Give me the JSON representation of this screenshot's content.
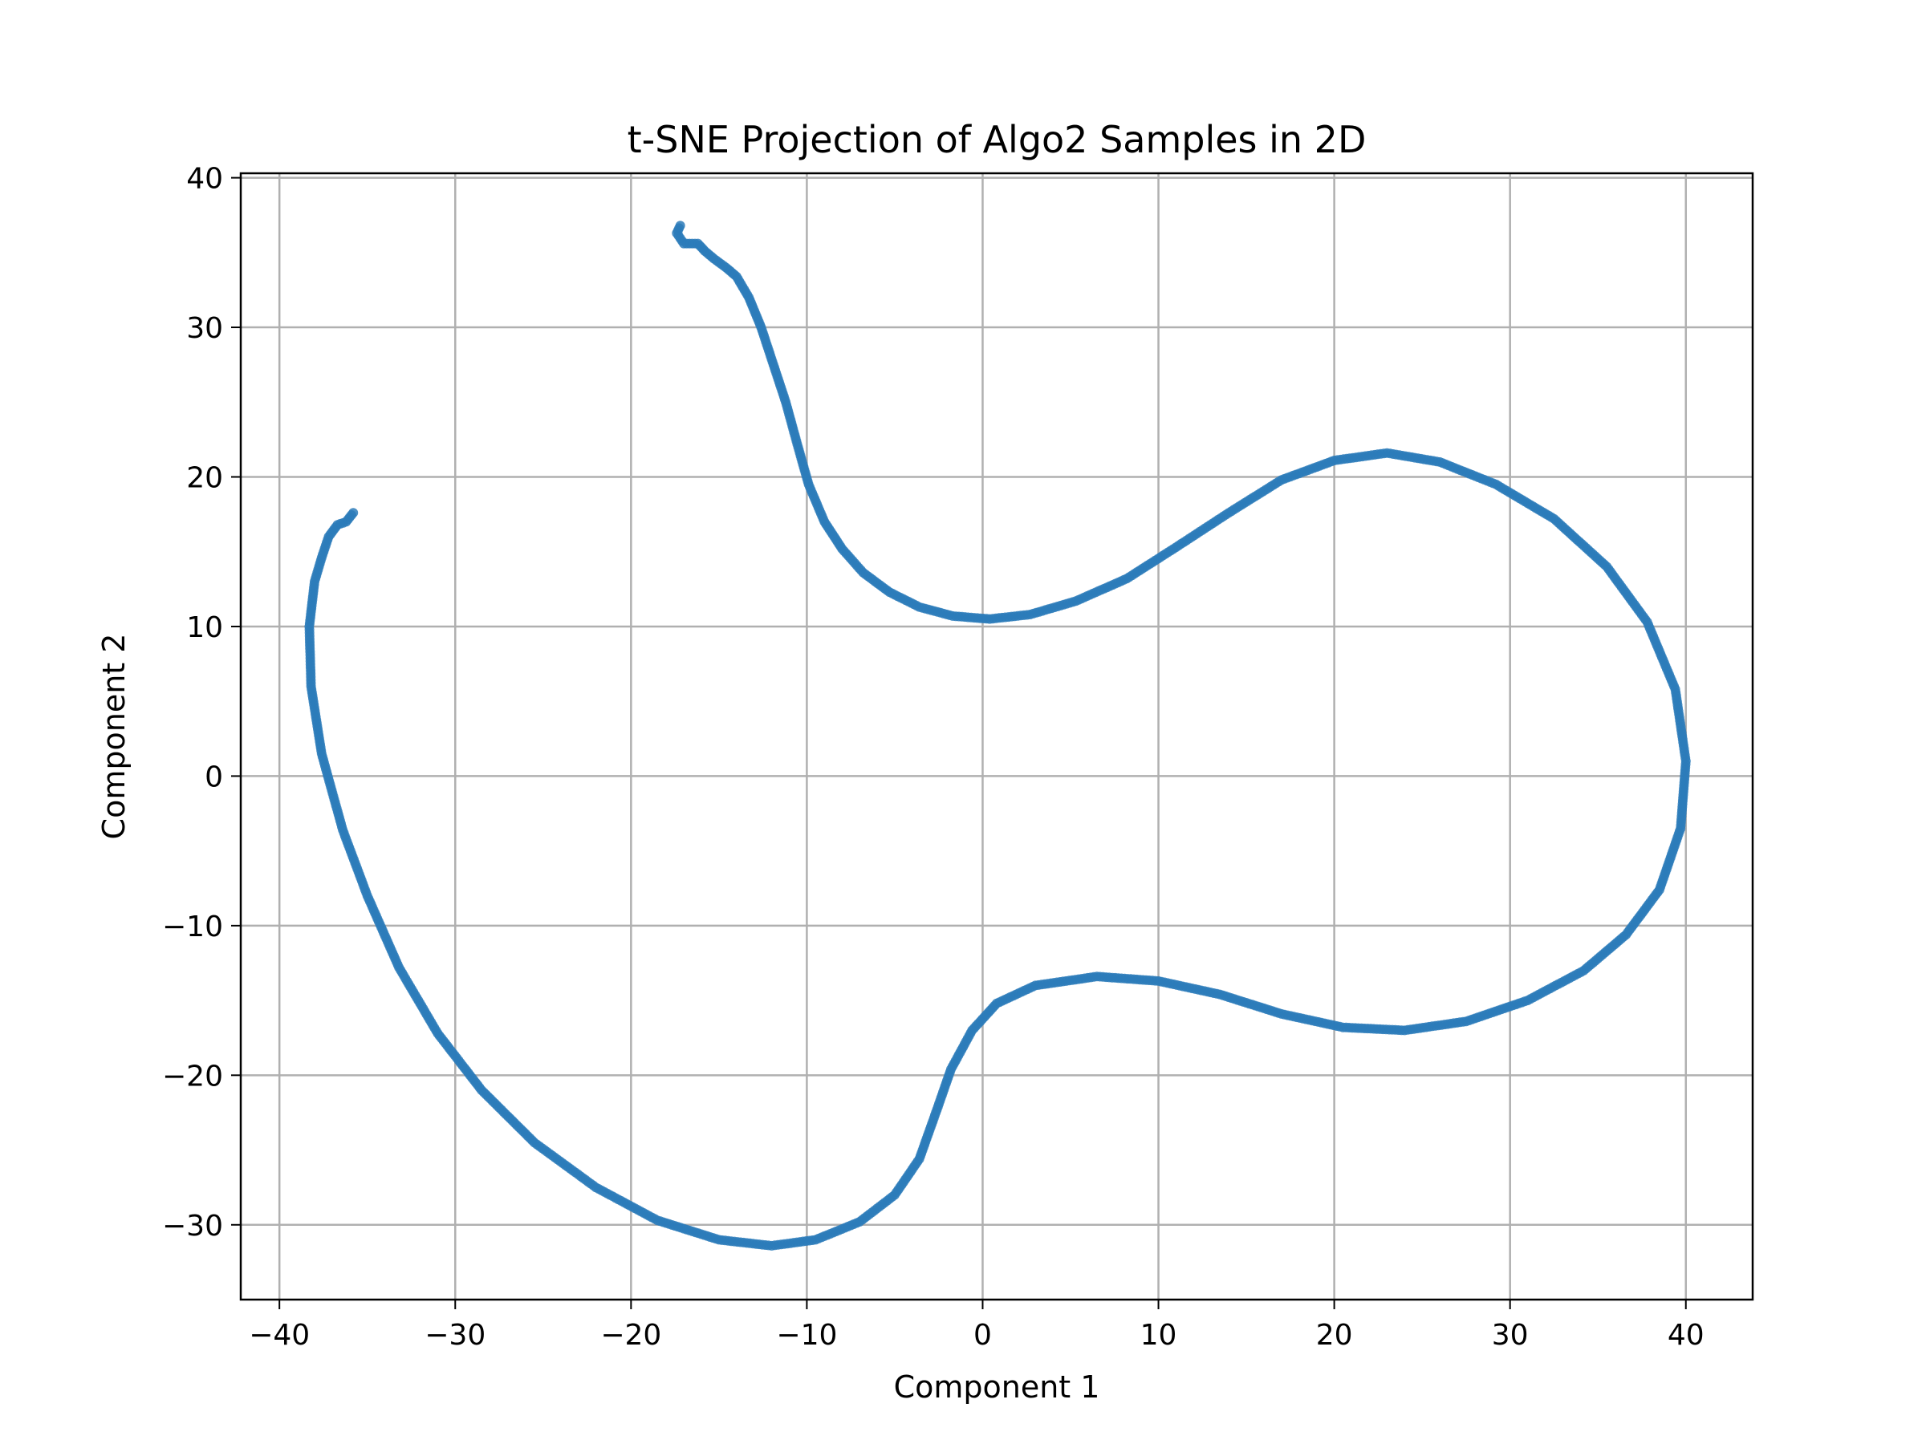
{
  "chart_data": {
    "type": "scatter",
    "title": "t-SNE Projection of Algo2 Samples in 2D",
    "xlabel": "Component 1",
    "ylabel": "Component 2",
    "xlim": [
      -42.2,
      43.8
    ],
    "ylim": [
      -35,
      40.3
    ],
    "xticks": [
      -40,
      -30,
      -20,
      -10,
      0,
      10,
      20,
      30,
      40
    ],
    "yticks": [
      -30,
      -20,
      -10,
      0,
      10,
      20,
      30,
      40
    ],
    "grid": true,
    "color": "#2b7bba",
    "series": [
      {
        "points": [
          [
            -17.2,
            36.8
          ],
          [
            -17.4,
            36.3
          ],
          [
            -17.0,
            35.6
          ],
          [
            -16.2,
            35.6
          ],
          [
            -15.8,
            35.1
          ],
          [
            -15.3,
            34.6
          ],
          [
            -14.6,
            34.0
          ],
          [
            -14.0,
            33.4
          ],
          [
            -13.3,
            32.0
          ],
          [
            -12.6,
            30.0
          ],
          [
            -11.9,
            27.5
          ],
          [
            -11.2,
            25.0
          ],
          [
            -10.5,
            22.0
          ],
          [
            -9.9,
            19.5
          ],
          [
            -9.0,
            17.0
          ],
          [
            -8.0,
            15.2
          ],
          [
            -6.8,
            13.6
          ],
          [
            -5.3,
            12.3
          ],
          [
            -3.6,
            11.3
          ],
          [
            -1.7,
            10.7
          ],
          [
            0.4,
            10.5
          ],
          [
            2.7,
            10.8
          ],
          [
            5.3,
            11.7
          ],
          [
            8.2,
            13.2
          ],
          [
            11.0,
            15.3
          ],
          [
            14.0,
            17.6
          ],
          [
            17.0,
            19.8
          ],
          [
            20.0,
            21.1
          ],
          [
            23.0,
            21.6
          ],
          [
            26.0,
            21.0
          ],
          [
            29.2,
            19.5
          ],
          [
            32.5,
            17.2
          ],
          [
            35.5,
            14.0
          ],
          [
            37.8,
            10.3
          ],
          [
            39.4,
            5.8
          ],
          [
            40.0,
            1.0
          ],
          [
            39.7,
            -3.5
          ],
          [
            38.5,
            -7.6
          ],
          [
            36.6,
            -10.6
          ],
          [
            34.2,
            -13.0
          ],
          [
            31.0,
            -15.0
          ],
          [
            27.5,
            -16.4
          ],
          [
            24.0,
            -17.0
          ],
          [
            20.5,
            -16.8
          ],
          [
            17.0,
            -15.9
          ],
          [
            13.5,
            -14.6
          ],
          [
            10.0,
            -13.7
          ],
          [
            6.5,
            -13.4
          ],
          [
            3.0,
            -14.0
          ],
          [
            0.8,
            -15.2
          ],
          [
            -0.6,
            -17.0
          ],
          [
            -1.8,
            -19.6
          ],
          [
            -2.6,
            -22.3
          ],
          [
            -3.6,
            -25.6
          ],
          [
            -5.0,
            -28.0
          ],
          [
            -7.0,
            -29.8
          ],
          [
            -9.5,
            -31.0
          ],
          [
            -12.0,
            -31.4
          ],
          [
            -15.0,
            -31.0
          ],
          [
            -18.5,
            -29.7
          ],
          [
            -22.0,
            -27.5
          ],
          [
            -25.5,
            -24.5
          ],
          [
            -28.5,
            -21.0
          ],
          [
            -31.0,
            -17.2
          ],
          [
            -33.2,
            -12.8
          ],
          [
            -35.0,
            -8.0
          ],
          [
            -36.4,
            -3.6
          ],
          [
            -37.6,
            1.5
          ],
          [
            -38.2,
            6.0
          ],
          [
            -38.3,
            10.0
          ],
          [
            -38.0,
            13.0
          ],
          [
            -37.6,
            14.6
          ],
          [
            -37.2,
            16.0
          ],
          [
            -36.7,
            16.8
          ],
          [
            -36.2,
            17.0
          ],
          [
            -35.8,
            17.6
          ]
        ]
      }
    ]
  }
}
